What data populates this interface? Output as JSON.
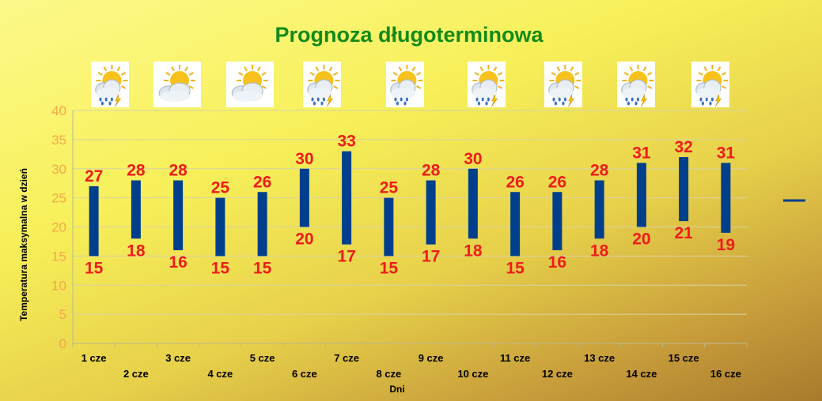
{
  "chart_data": {
    "type": "bar",
    "subtype": "floating-range",
    "title": "Prognoza długoterminowa",
    "xlabel": "Dni",
    "ylabel": "Temperatura maksymalna w dzień",
    "ylim": [
      0,
      40
    ],
    "yticks": [
      "0",
      "5",
      "10",
      "15",
      "20",
      "25",
      "30",
      "35",
      "40"
    ],
    "grid": true,
    "categories": [
      "1 cze",
      "2 cze",
      "3 cze",
      "4 cze",
      "5 cze",
      "6 cze",
      "7 cze",
      "8 cze",
      "9 cze",
      "10 cze",
      "11 cze",
      "12 cze",
      "13 cze",
      "14 cze",
      "15 cze",
      "16 cze"
    ],
    "max": [
      27,
      28,
      28,
      25,
      26,
      30,
      33,
      25,
      28,
      30,
      26,
      26,
      28,
      31,
      32,
      31
    ],
    "min": [
      15,
      18,
      16,
      15,
      15,
      20,
      17,
      15,
      17,
      18,
      15,
      16,
      18,
      20,
      21,
      19
    ],
    "bar_color": "#003f8c",
    "label_color": "#ee1c1c",
    "title_color": "#138a1b",
    "legend": {
      "position": "right",
      "color": "#003f8c"
    },
    "weather_icons": [
      {
        "day": "1 cze",
        "icon": "sun-cloud-rain-lightning-icon"
      },
      {
        "day": "2 cze",
        "icon": "sun-cloud-icon"
      },
      {
        "day": "3 cze",
        "icon": "sun-cloud-icon"
      },
      {
        "day": "4 cze",
        "icon": "sun-cloud-rain-lightning-icon"
      },
      {
        "day": "5 cze",
        "icon": "sun-cloud-rain-icon"
      },
      {
        "day": "6 cze",
        "icon": "sun-cloud-rain-lightning-icon"
      },
      {
        "day": "7 cze",
        "icon": "sun-cloud-rain-lightning-icon"
      },
      {
        "day": "8 cze",
        "icon": "sun-cloud-rain-lightning-icon"
      },
      {
        "day": "9 cze",
        "icon": "sun-cloud-rain-lightning-icon"
      }
    ]
  }
}
